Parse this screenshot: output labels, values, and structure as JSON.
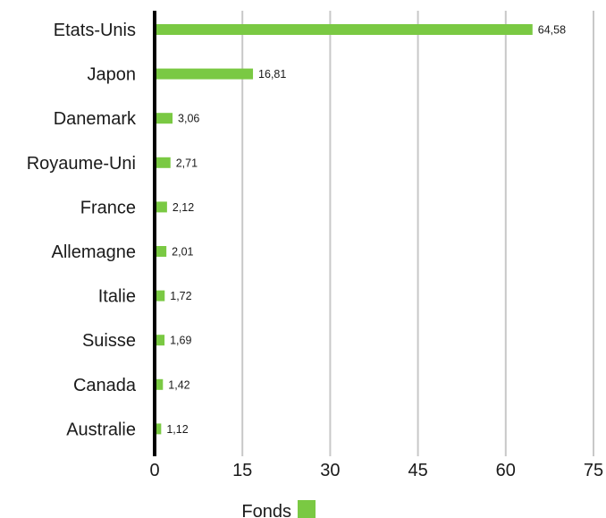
{
  "chart_data": {
    "type": "bar",
    "orientation": "horizontal",
    "categories": [
      "Etats-Unis",
      "Japon",
      "Danemark",
      "Royaume-Uni",
      "France",
      "Allemagne",
      "Italie",
      "Suisse",
      "Canada",
      "Australie"
    ],
    "series": [
      {
        "name": "Fonds",
        "color": "#7ac943",
        "values": [
          64.58,
          16.81,
          3.06,
          2.71,
          2.12,
          2.01,
          1.72,
          1.69,
          1.42,
          1.12
        ],
        "value_labels": [
          "64,58",
          "16,81",
          "3,06",
          "2,71",
          "2,12",
          "2,01",
          "1,72",
          "1,69",
          "1,42",
          "1,12"
        ]
      }
    ],
    "xlim": [
      0,
      75
    ],
    "xticks": [
      0,
      15,
      30,
      45,
      60,
      75
    ],
    "xtick_labels": [
      "0",
      "15",
      "30",
      "45",
      "60",
      "75"
    ],
    "grid": "vertical",
    "grid_color": "#c8c8c8",
    "axis_color": "#000000",
    "legend_position": "bottom-center",
    "title": "",
    "xlabel": "",
    "ylabel": ""
  }
}
